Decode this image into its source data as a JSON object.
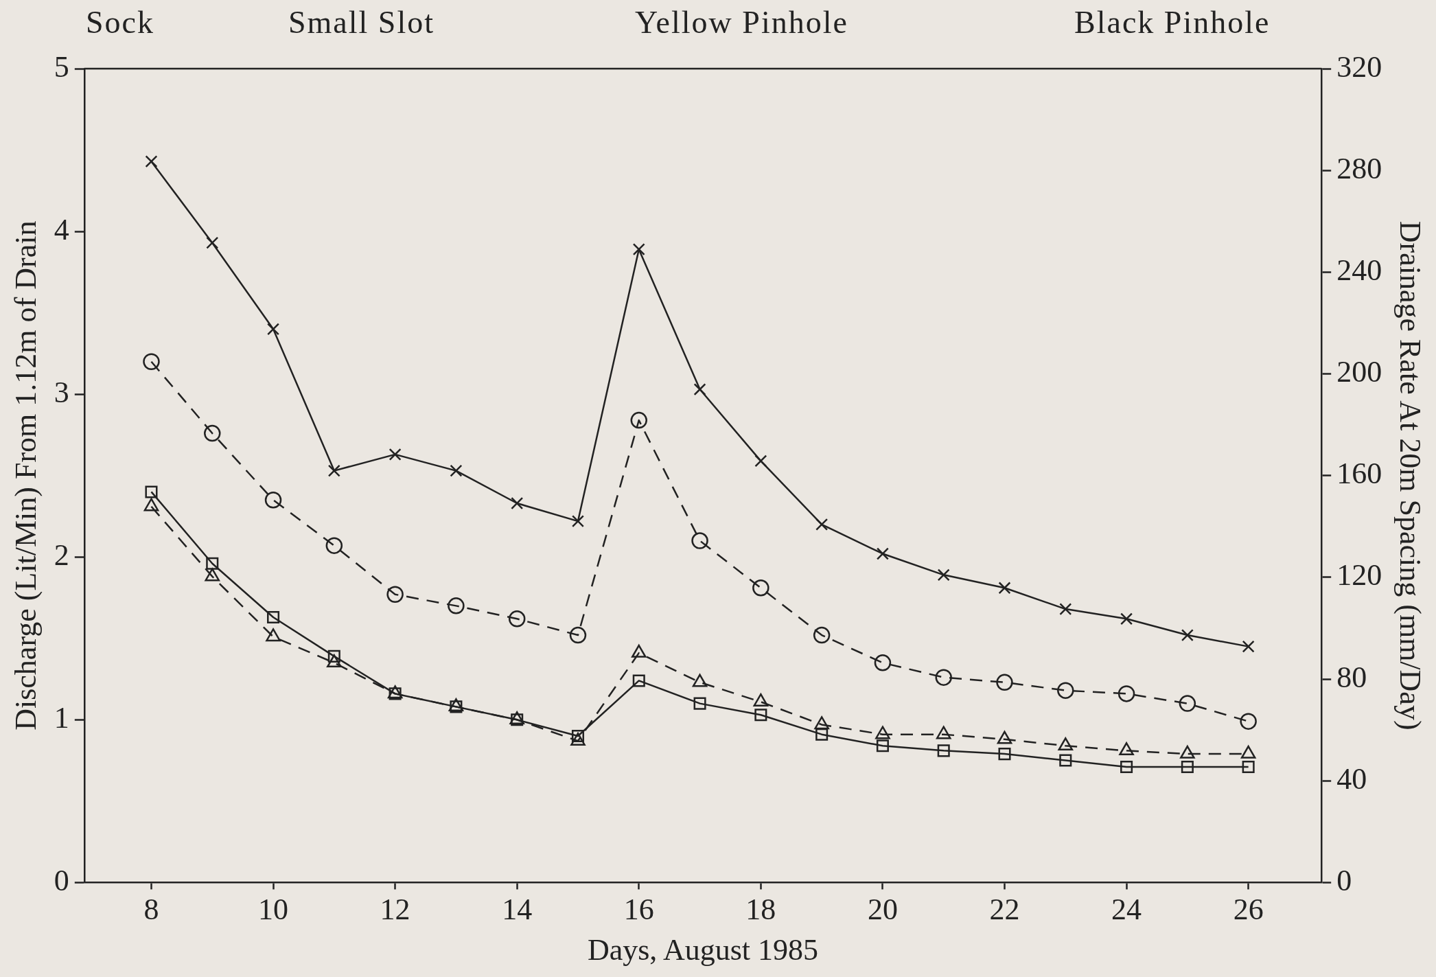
{
  "chart_data": {
    "type": "line",
    "xlabel": "Days, August 1985",
    "ylabel": "Discharge (Lit/Min) From 1.12m of Drain",
    "y2label": "Drainage Rate At 20m Spacing (mm/Day)",
    "annotations": [
      "Sock",
      "Small Slot",
      "Yellow Pinhole",
      "Black Pinhole"
    ],
    "x": [
      8,
      9,
      10,
      11,
      12,
      13,
      14,
      15,
      16,
      17,
      18,
      19,
      20,
      21,
      22,
      23,
      24,
      25,
      26
    ],
    "series": [
      {
        "color": "#222222",
        "marker": "cross",
        "line_style": "solid",
        "values": [
          4.43,
          3.93,
          3.4,
          2.53,
          2.63,
          2.53,
          2.33,
          2.22,
          3.89,
          3.03,
          2.59,
          2.2,
          2.02,
          1.89,
          1.81,
          1.68,
          1.62,
          1.52,
          1.45
        ]
      },
      {
        "color": "#222222",
        "marker": "circle",
        "line_style": "dashed",
        "values": [
          3.2,
          2.76,
          2.35,
          2.07,
          1.77,
          1.7,
          1.62,
          1.52,
          2.84,
          2.1,
          1.81,
          1.52,
          1.35,
          1.26,
          1.23,
          1.18,
          1.16,
          1.1,
          0.99
        ]
      },
      {
        "color": "#222222",
        "marker": "triangle",
        "line_style": "dashed",
        "values": [
          2.31,
          1.88,
          1.51,
          1.35,
          1.16,
          1.08,
          1.0,
          0.87,
          1.41,
          1.23,
          1.11,
          0.97,
          0.91,
          0.91,
          0.88,
          0.84,
          0.81,
          0.79,
          0.79
        ]
      },
      {
        "color": "#222222",
        "marker": "square",
        "line_style": "solid",
        "values": [
          2.4,
          1.96,
          1.63,
          1.39,
          1.16,
          1.08,
          1.0,
          0.9,
          1.24,
          1.1,
          1.03,
          0.91,
          0.84,
          0.81,
          0.79,
          0.75,
          0.71,
          0.71,
          0.71
        ]
      }
    ],
    "xlim": [
      6.9,
      27.2
    ],
    "xticks": [
      8,
      10,
      12,
      14,
      16,
      18,
      20,
      22,
      24,
      26
    ],
    "ylim": [
      0,
      5
    ],
    "yticks": [
      0,
      1,
      2,
      3,
      4,
      5
    ],
    "y2lim": [
      0,
      320
    ],
    "y2ticks": [
      0,
      40,
      80,
      120,
      160,
      200,
      240,
      280,
      320
    ],
    "grid": false,
    "legend": false
  }
}
